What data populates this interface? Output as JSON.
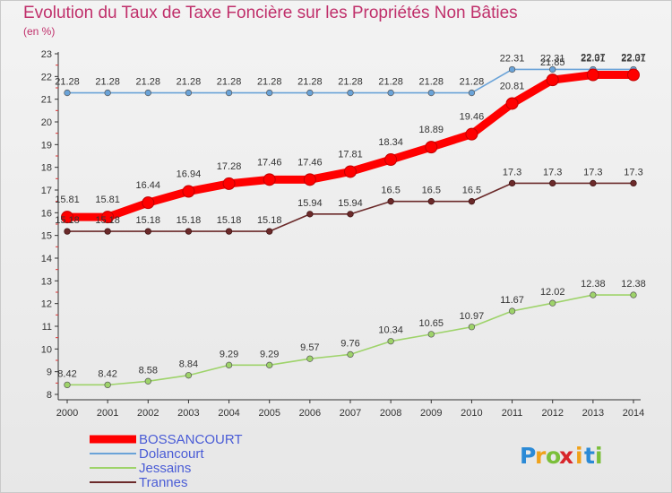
{
  "chart_data": {
    "type": "line",
    "title": "Evolution du Taux de Taxe Foncière sur les Propriétés Non Bâties",
    "subtitle": "(en %)",
    "ylim": [
      8,
      23
    ],
    "yticks": [
      "8",
      "9",
      "10",
      "11",
      "12",
      "13",
      "14",
      "15",
      "16",
      "17",
      "18",
      "19",
      "20",
      "21",
      "22",
      "23"
    ],
    "grid": false,
    "legend_position": "bottom-left",
    "categories": [
      "2000",
      "2001",
      "2002",
      "2003",
      "2004",
      "2005",
      "2006",
      "2007",
      "2008",
      "2009",
      "2010",
      "2011",
      "2012",
      "2013",
      "2014"
    ],
    "series": [
      {
        "name": "BOSSANCOURT",
        "color": "#ff0000",
        "values": [
          15.81,
          15.81,
          16.44,
          16.94,
          17.28,
          17.46,
          17.46,
          17.81,
          18.34,
          18.89,
          19.46,
          20.81,
          21.85,
          22.07,
          22.07
        ],
        "labels": [
          "15.81",
          "15.81",
          "16.44",
          "16.94",
          "17.28",
          "17.46",
          "17.46",
          "17.81",
          "18.34",
          "18.89",
          "19.46",
          "20.81",
          "21.85",
          "22.07",
          "22.07"
        ]
      },
      {
        "name": "Dolancourt",
        "color": "#6aa3d8",
        "values": [
          21.28,
          21.28,
          21.28,
          21.28,
          21.28,
          21.28,
          21.28,
          21.28,
          21.28,
          21.28,
          21.28,
          22.31,
          22.31,
          22.31,
          22.31
        ],
        "labels": [
          "21.28",
          "21.28",
          "21.28",
          "21.28",
          "21.28",
          "21.28",
          "21.28",
          "21.28",
          "21.28",
          "21.28",
          "21.28",
          "22.31",
          "22.31",
          "22.31",
          "22.31"
        ]
      },
      {
        "name": "Jessains",
        "color": "#9ed36a",
        "values": [
          8.42,
          8.42,
          8.58,
          8.84,
          9.29,
          9.29,
          9.57,
          9.76,
          10.34,
          10.65,
          10.97,
          11.67,
          12.02,
          12.38,
          12.38
        ],
        "labels": [
          "8.42",
          "8.42",
          "8.58",
          "8.84",
          "9.29",
          "9.29",
          "9.57",
          "9.76",
          "10.34",
          "10.65",
          "10.97",
          "11.67",
          "12.02",
          "12.38",
          "12.38"
        ]
      },
      {
        "name": "Trannes",
        "color": "#6b2a2a",
        "values": [
          15.18,
          15.18,
          15.18,
          15.18,
          15.18,
          15.18,
          15.94,
          15.94,
          16.5,
          16.5,
          16.5,
          17.3,
          17.3,
          17.3,
          17.3
        ],
        "labels": [
          "15.18",
          "15.18",
          "15.18",
          "15.18",
          "15.18",
          "15.18",
          "15.94",
          "15.94",
          "16.5",
          "16.5",
          "16.5",
          "17.3",
          "17.3",
          "17.3",
          "17.3"
        ]
      }
    ]
  },
  "logo": {
    "letters": [
      "P",
      "r",
      "o",
      "x",
      "i",
      "t",
      "i"
    ],
    "colors": [
      "#2b8ad6",
      "#f0a21b",
      "#7bbf3a",
      "#d8262b",
      "#f0a21b",
      "#2b8ad6",
      "#7bbf3a"
    ]
  }
}
